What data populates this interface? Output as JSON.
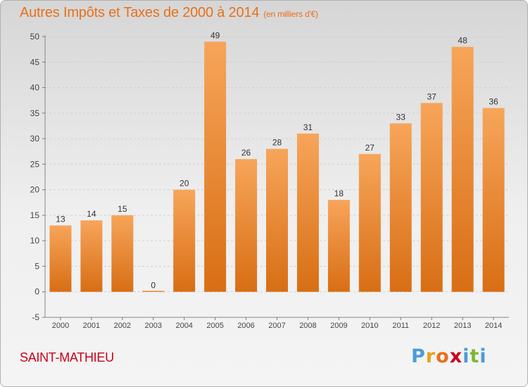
{
  "header": {
    "title": "Autres Impôts et Taxes de 2000 à 2014",
    "subtitle": "(en milliers d'€)"
  },
  "footer": {
    "town": "SAINT-MATHIEU",
    "brand_letters": [
      "P",
      "r",
      "o",
      "x",
      "i",
      "t",
      "i"
    ],
    "brand_colors": [
      "#4c9bd6",
      "#e8a21c",
      "#e8701c",
      "#c8001c",
      "#4c9bd6",
      "#7cb82f",
      "#4c9bd6"
    ]
  },
  "chart_data": {
    "type": "bar",
    "categories": [
      "2000",
      "2001",
      "2002",
      "2003",
      "2004",
      "2005",
      "2006",
      "2007",
      "2008",
      "2009",
      "2010",
      "2011",
      "2012",
      "2013",
      "2014"
    ],
    "values": [
      13,
      14,
      15,
      0,
      20,
      49,
      26,
      28,
      31,
      18,
      27,
      33,
      37,
      48,
      36
    ],
    "ylim": [
      -5,
      50
    ],
    "yticks": [
      -5,
      0,
      5,
      10,
      15,
      20,
      25,
      30,
      35,
      40,
      45,
      50
    ],
    "grid": true,
    "bar_color": "#f0872a",
    "bar_color_light": "#f7a55a",
    "bar_color_dark": "#d86e14"
  }
}
